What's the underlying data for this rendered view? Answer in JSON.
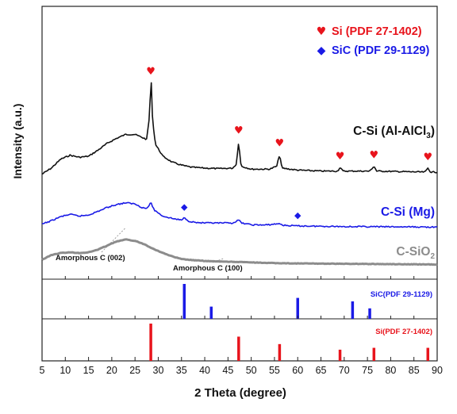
{
  "chart_data": {
    "type": "line",
    "xlabel": "2 Theta (degree)",
    "ylabel": "Intensity (a.u.)",
    "xlim": [
      5,
      90
    ],
    "x_ticks": [
      5,
      10,
      15,
      20,
      25,
      30,
      35,
      40,
      45,
      50,
      55,
      60,
      65,
      70,
      75,
      80,
      85,
      90
    ],
    "grid": false,
    "legend": {
      "position": "top-right",
      "entries": [
        {
          "symbol": "♥",
          "text": "Si (PDF 27-1402)",
          "color": "#e8141c"
        },
        {
          "symbol": "◆",
          "text": "SiC (PDF 29-1129)",
          "color": "#1a1ae6"
        }
      ]
    },
    "series": [
      {
        "name_main": "C-Si (Al-AlCl",
        "name_sub": "3",
        "name_tail": ")",
        "color": "#111111",
        "points": [
          [
            5,
            0.02
          ],
          [
            7,
            0.08
          ],
          [
            9,
            0.17
          ],
          [
            11,
            0.21
          ],
          [
            13,
            0.19
          ],
          [
            15,
            0.2
          ],
          [
            17,
            0.26
          ],
          [
            19,
            0.33
          ],
          [
            21,
            0.38
          ],
          [
            23,
            0.42
          ],
          [
            25,
            0.42
          ],
          [
            26.5,
            0.39
          ],
          [
            27.5,
            0.37
          ],
          [
            28.1,
            0.6
          ],
          [
            28.45,
            1.0
          ],
          [
            28.8,
            0.55
          ],
          [
            29.4,
            0.32
          ],
          [
            31,
            0.2
          ],
          [
            33,
            0.14
          ],
          [
            35,
            0.11
          ],
          [
            37,
            0.09
          ],
          [
            40,
            0.08
          ],
          [
            43,
            0.075
          ],
          [
            46,
            0.08
          ],
          [
            46.8,
            0.12
          ],
          [
            47.3,
            0.35
          ],
          [
            47.8,
            0.1
          ],
          [
            50,
            0.07
          ],
          [
            54,
            0.07
          ],
          [
            55.5,
            0.1
          ],
          [
            56.1,
            0.22
          ],
          [
            56.6,
            0.08
          ],
          [
            60,
            0.06
          ],
          [
            65,
            0.05
          ],
          [
            68.6,
            0.05
          ],
          [
            69.1,
            0.09
          ],
          [
            69.7,
            0.05
          ],
          [
            75.5,
            0.05
          ],
          [
            76.4,
            0.1
          ],
          [
            77,
            0.05
          ],
          [
            87.4,
            0.04
          ],
          [
            88,
            0.08
          ],
          [
            88.6,
            0.04
          ],
          [
            90,
            0.04
          ]
        ]
      },
      {
        "name_main": "C-Si (Mg)",
        "color": "#1a1ae6",
        "points": [
          [
            5,
            0.1
          ],
          [
            7,
            0.16
          ],
          [
            9,
            0.23
          ],
          [
            11,
            0.27
          ],
          [
            13,
            0.24
          ],
          [
            15,
            0.26
          ],
          [
            17,
            0.32
          ],
          [
            19,
            0.39
          ],
          [
            21,
            0.44
          ],
          [
            23,
            0.47
          ],
          [
            25,
            0.45
          ],
          [
            26.5,
            0.39
          ],
          [
            27.5,
            0.37
          ],
          [
            28.4,
            0.47
          ],
          [
            29.2,
            0.34
          ],
          [
            31,
            0.24
          ],
          [
            33,
            0.2
          ],
          [
            35,
            0.17
          ],
          [
            35.7,
            0.22
          ],
          [
            36.3,
            0.16
          ],
          [
            38,
            0.13
          ],
          [
            40,
            0.12
          ],
          [
            43,
            0.12
          ],
          [
            46,
            0.12
          ],
          [
            47.3,
            0.17
          ],
          [
            48,
            0.12
          ],
          [
            50,
            0.09
          ],
          [
            53,
            0.085
          ],
          [
            56.1,
            0.11
          ],
          [
            57,
            0.08
          ],
          [
            60,
            0.07
          ],
          [
            65,
            0.065
          ],
          [
            70,
            0.06
          ],
          [
            80,
            0.055
          ],
          [
            90,
            0.05
          ]
        ]
      },
      {
        "name_main": "C-SiO",
        "name_sub": "2",
        "color": "#8c8c8c",
        "points": [
          [
            5,
            0.1
          ],
          [
            7,
            0.17
          ],
          [
            9,
            0.2
          ],
          [
            11,
            0.21
          ],
          [
            13,
            0.2
          ],
          [
            15,
            0.21
          ],
          [
            17,
            0.25
          ],
          [
            19,
            0.31
          ],
          [
            21,
            0.37
          ],
          [
            23,
            0.4
          ],
          [
            25,
            0.38
          ],
          [
            27,
            0.33
          ],
          [
            29,
            0.26
          ],
          [
            31,
            0.2
          ],
          [
            33,
            0.15
          ],
          [
            35,
            0.11
          ],
          [
            38,
            0.09
          ],
          [
            42,
            0.075
          ],
          [
            46,
            0.07
          ],
          [
            50,
            0.06
          ],
          [
            55,
            0.05
          ],
          [
            60,
            0.045
          ],
          [
            70,
            0.04
          ],
          [
            80,
            0.035
          ],
          [
            90,
            0.03
          ]
        ]
      }
    ],
    "peak_markers": [
      {
        "symbol": "♥",
        "x": 28.4,
        "color": "#e8141c",
        "series": 0
      },
      {
        "symbol": "♥",
        "x": 47.3,
        "color": "#e8141c",
        "series": 0
      },
      {
        "symbol": "♥",
        "x": 56.1,
        "color": "#e8141c",
        "series": 0
      },
      {
        "symbol": "♥",
        "x": 69.1,
        "color": "#e8141c",
        "series": 0
      },
      {
        "symbol": "♥",
        "x": 76.4,
        "color": "#e8141c",
        "series": 0
      },
      {
        "symbol": "♥",
        "x": 88.0,
        "color": "#e8141c",
        "series": 0
      },
      {
        "symbol": "◆",
        "x": 35.6,
        "color": "#1a1ae6",
        "series": 1
      },
      {
        "symbol": "◆",
        "x": 60.0,
        "color": "#1a1ae6",
        "series": 1
      }
    ],
    "annotations": [
      {
        "text": "Amorphous C (002)",
        "x": 23
      },
      {
        "text": "Amorphous C (100)",
        "x": 44
      }
    ],
    "reference_panels": [
      {
        "label": "SiC(PDF 29-1129)",
        "color": "#1a1ae6",
        "lines": [
          {
            "x": 35.6,
            "intensity": 1.0
          },
          {
            "x": 41.4,
            "intensity": 0.35
          },
          {
            "x": 60.0,
            "intensity": 0.6
          },
          {
            "x": 71.8,
            "intensity": 0.5
          },
          {
            "x": 75.5,
            "intensity": 0.3
          }
        ]
      },
      {
        "label": "Si(PDF 27-1402)",
        "color": "#e8141c",
        "lines": [
          {
            "x": 28.4,
            "intensity": 1.0
          },
          {
            "x": 47.3,
            "intensity": 0.65
          },
          {
            "x": 56.1,
            "intensity": 0.45
          },
          {
            "x": 69.1,
            "intensity": 0.3
          },
          {
            "x": 76.4,
            "intensity": 0.35
          },
          {
            "x": 88.0,
            "intensity": 0.35
          }
        ]
      }
    ]
  }
}
